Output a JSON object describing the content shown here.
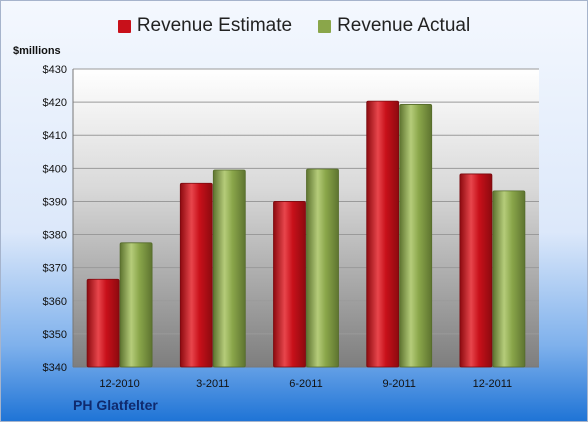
{
  "chart_data": {
    "type": "bar",
    "title": "",
    "ylabel": "$millions",
    "xlabel": "",
    "categories": [
      "12-2010",
      "3-2011",
      "6-2011",
      "9-2011",
      "12-2011"
    ],
    "series": [
      {
        "name": "Revenue Estimate",
        "color": "#c8101a",
        "values": [
          366.5,
          395.5,
          390.0,
          420.3,
          398.3
        ]
      },
      {
        "name": "Revenue Actual",
        "color": "#8aa64a",
        "values": [
          377.5,
          399.5,
          399.8,
          419.3,
          393.2
        ]
      }
    ],
    "ylim": [
      340,
      430
    ],
    "yticks": [
      340,
      350,
      360,
      370,
      380,
      390,
      400,
      410,
      420,
      430
    ],
    "ytick_labels": [
      "$340",
      "$350",
      "$360",
      "$370",
      "$380",
      "$390",
      "$400",
      "$410",
      "$420",
      "$430"
    ],
    "grid": true,
    "legend_position": "top"
  },
  "company_name": "PH Glatfelter"
}
